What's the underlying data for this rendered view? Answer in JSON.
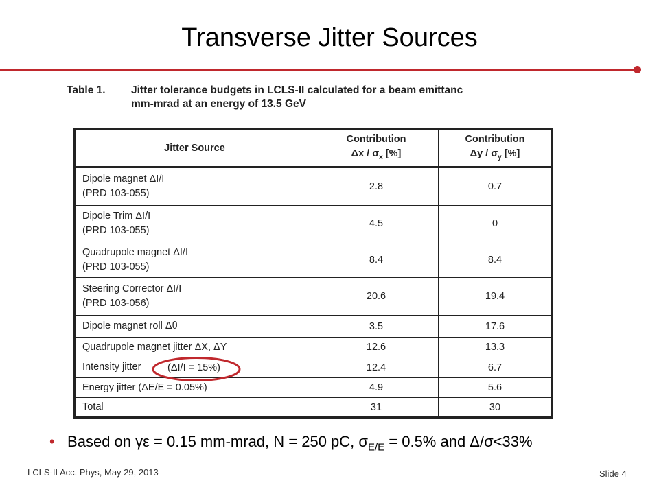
{
  "title": "Transverse Jitter Sources",
  "caption": {
    "label": "Table 1.",
    "lines": [
      "Jitter tolerance budgets in LCLS-II calculated for a beam emittanc",
      "mm-mrad at an energy of 13.5 GeV"
    ]
  },
  "table": {
    "header": [
      "Jitter Source",
      {
        "line1": "Contribution",
        "prefix": "Δx / σ",
        "sub": "x",
        "suffix": " [%]"
      },
      {
        "line1": "Contribution",
        "prefix": "Δy / σ",
        "sub": "y",
        "suffix": " [%]"
      }
    ],
    "rows": [
      {
        "source": [
          "Dipole magnet ΔI/I",
          "(PRD 103-055)"
        ],
        "dx": 2.8,
        "dy": 0.7
      },
      {
        "source": [
          "Dipole Trim ΔI/I",
          "(PRD 103-055)"
        ],
        "dx": 4.5,
        "dy": 0
      },
      {
        "source": [
          "Quadrupole magnet ΔI/I",
          "(PRD 103-055)"
        ],
        "dx": 8.4,
        "dy": 8.4
      },
      {
        "source": [
          "Steering Corrector ΔI/I",
          "(PRD 103-056)"
        ],
        "dx": 20.6,
        "dy": 19.4
      },
      {
        "source": [
          "Dipole magnet roll Δθ"
        ],
        "dx": 3.5,
        "dy": 17.6
      },
      {
        "source": [
          "Quadrupole magnet jitter ΔX, ΔY"
        ],
        "dx": 12.6,
        "dy": 13.3
      },
      {
        "source": [
          "Intensity jitter"
        ],
        "dx": 12.4,
        "dy": 6.7
      },
      {
        "source": [
          "Energy jitter (ΔE/E = 0.05%)"
        ],
        "dx": 4.9,
        "dy": 5.6
      },
      {
        "source": [
          "Total"
        ],
        "dx": 31,
        "dy": 30
      }
    ]
  },
  "annotation": "(ΔI/I = 15%)",
  "bullet": {
    "prefix": "Based on γε = 0.15 mm-mrad, N = 250 pC, σ",
    "sub": "E/E",
    "suffix": " = 0.5% and Δ/σ<33%"
  },
  "footer": "LCLS-II Acc. Phys, May 29, 2013",
  "slide_number": "Slide 4"
}
